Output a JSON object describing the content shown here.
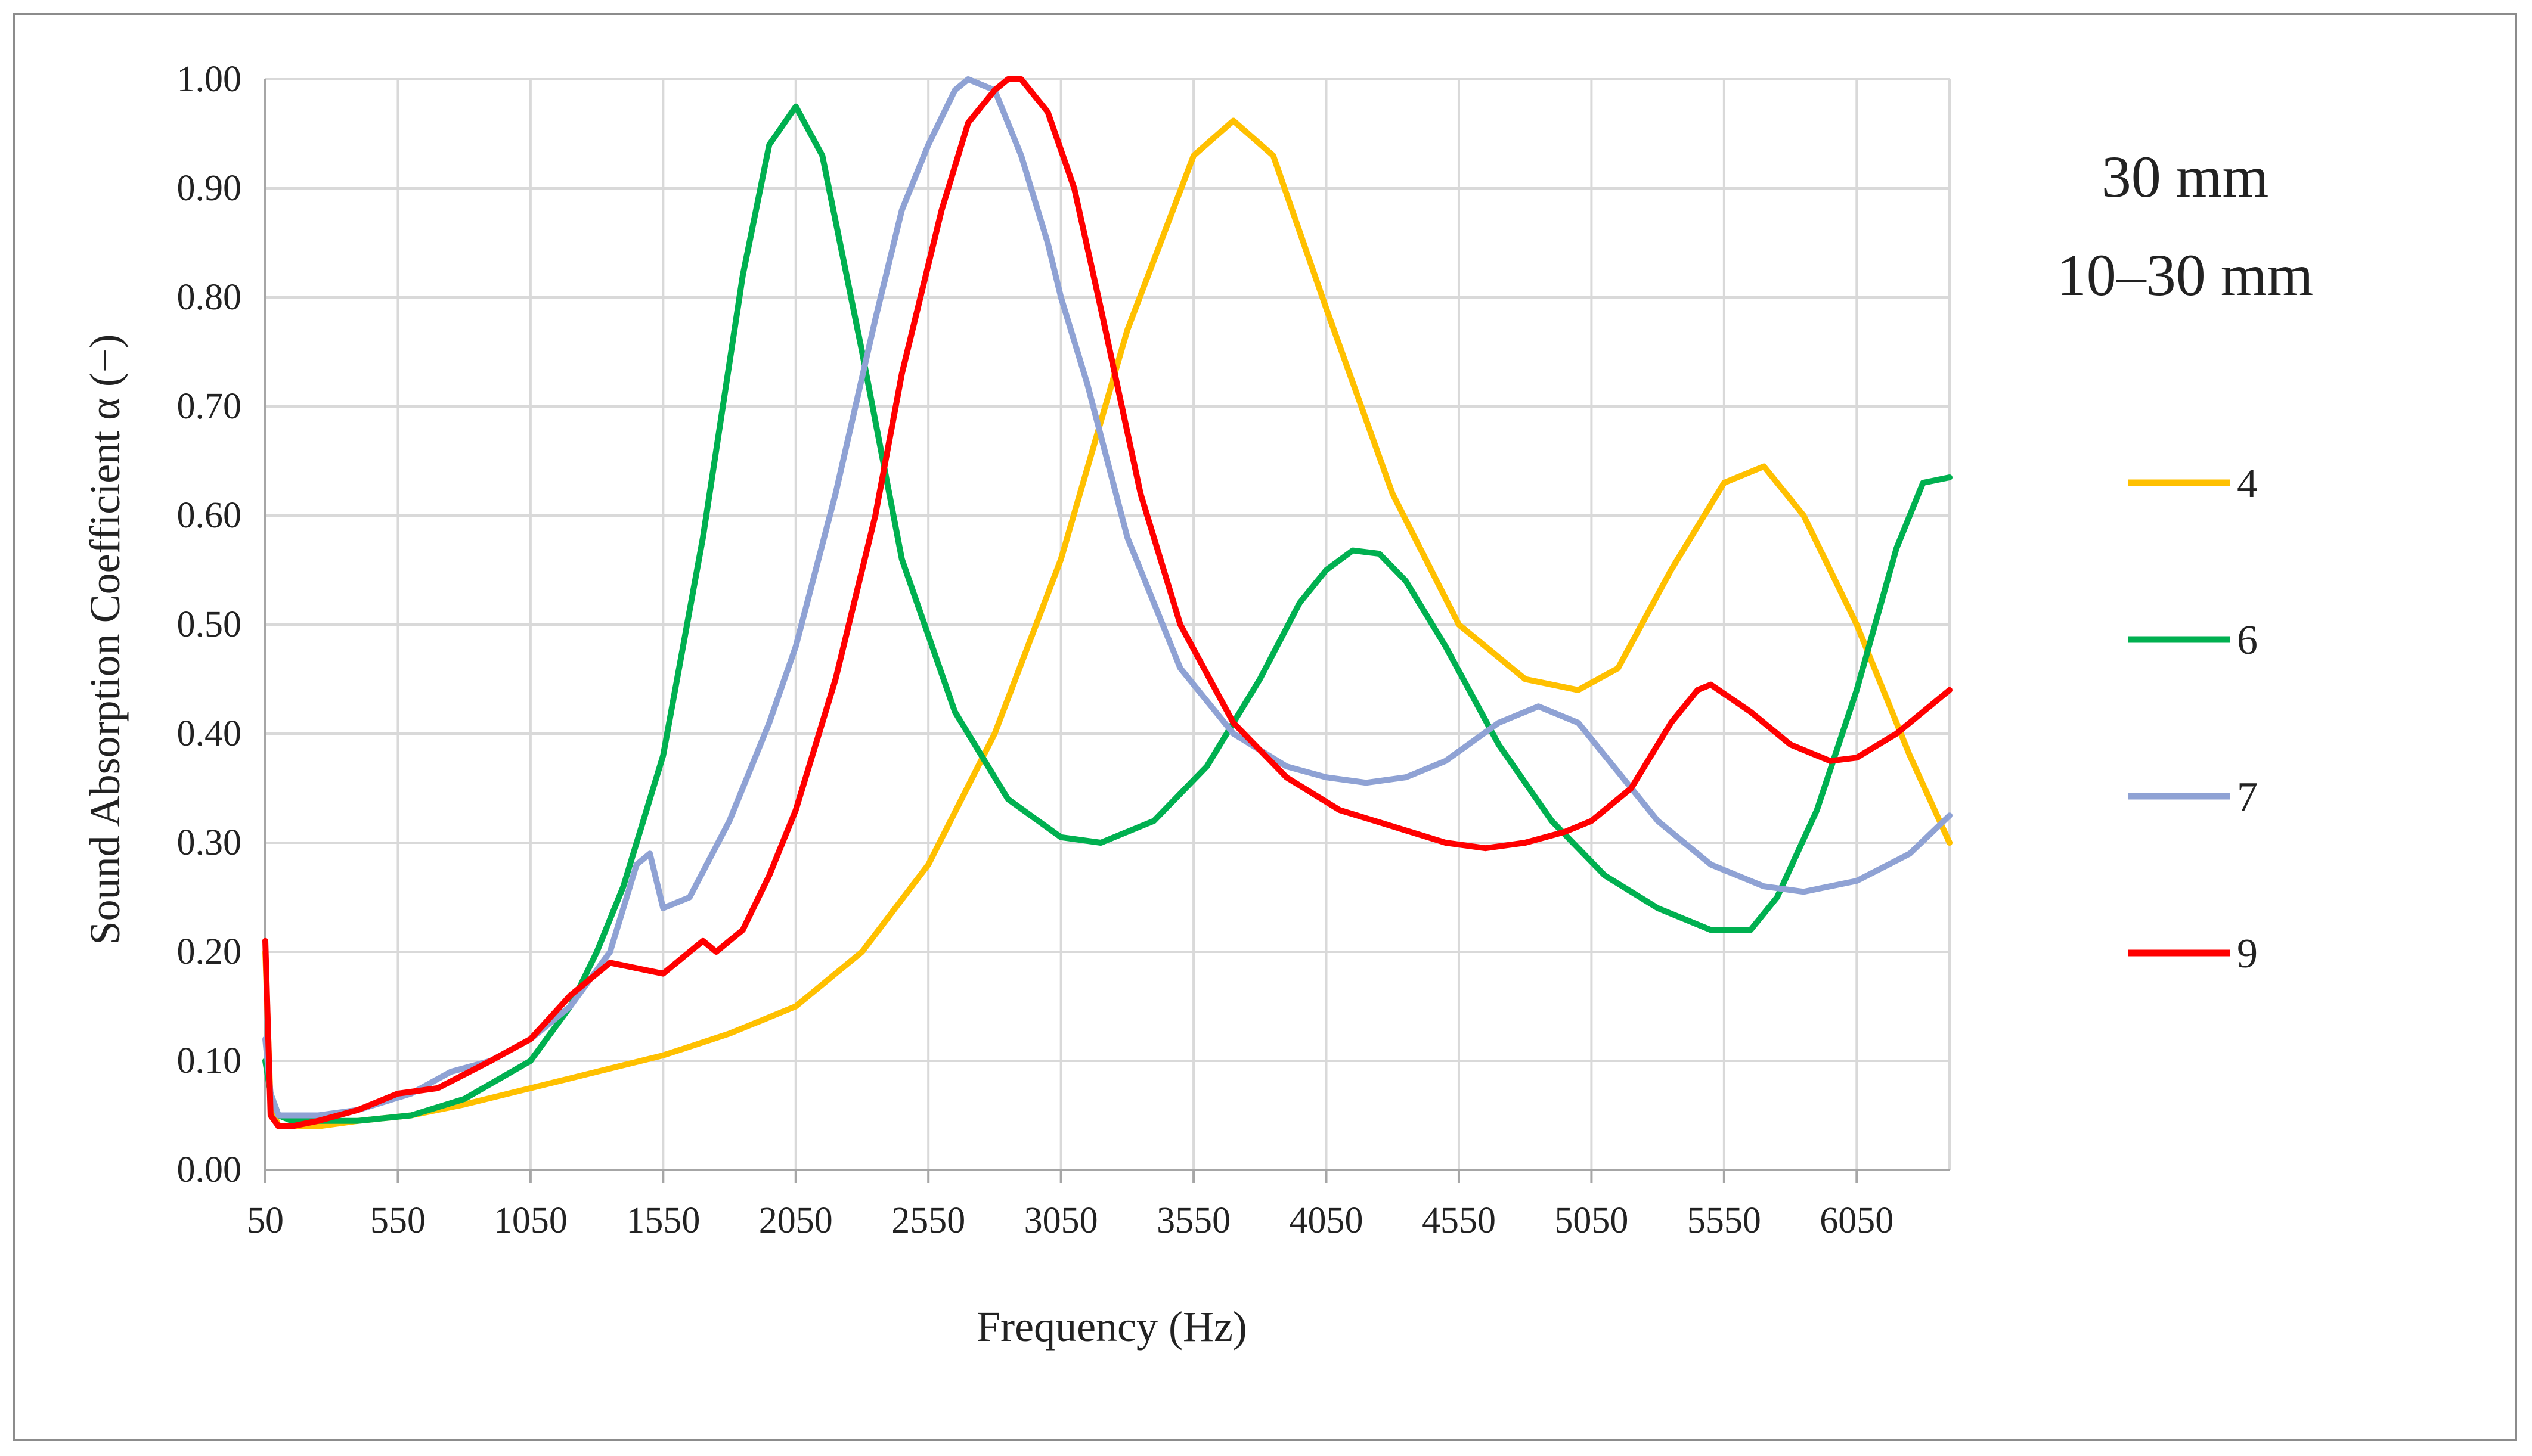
{
  "chart_data": {
    "type": "line",
    "title": "",
    "xlabel": "Frequency (Hz)",
    "ylabel": "Sound Absorption Coefficient α (−)",
    "xlim": [
      50,
      6400
    ],
    "ylim": [
      0,
      1.0
    ],
    "grid": true,
    "legend_position": "right",
    "x_ticks": [
      "50",
      "550",
      "1050",
      "1550",
      "2050",
      "2550",
      "3050",
      "3550",
      "4050",
      "4550",
      "5050",
      "5550",
      "6050"
    ],
    "y_ticks": [
      "0.00",
      "0.10",
      "0.20",
      "0.30",
      "0.40",
      "0.50",
      "0.60",
      "0.70",
      "0.80",
      "0.90",
      "1.00"
    ],
    "annotations": [
      "30 mm",
      "10–30 mm"
    ],
    "series": [
      {
        "name": "4",
        "color": "#ffc000",
        "x": [
          50,
          70,
          100,
          150,
          250,
          400,
          600,
          800,
          1050,
          1300,
          1550,
          1800,
          2050,
          2300,
          2550,
          2800,
          3050,
          3300,
          3550,
          3700,
          3850,
          4050,
          4300,
          4550,
          4800,
          5000,
          5150,
          5350,
          5550,
          5700,
          5850,
          6050,
          6250,
          6400
        ],
        "y": [
          0.2,
          0.06,
          0.04,
          0.04,
          0.04,
          0.045,
          0.05,
          0.06,
          0.075,
          0.09,
          0.105,
          0.125,
          0.15,
          0.2,
          0.28,
          0.4,
          0.56,
          0.77,
          0.93,
          0.962,
          0.93,
          0.79,
          0.62,
          0.5,
          0.45,
          0.44,
          0.46,
          0.55,
          0.63,
          0.645,
          0.6,
          0.5,
          0.38,
          0.3
        ]
      },
      {
        "name": "6",
        "color": "#00b050",
        "x": [
          50,
          70,
          100,
          150,
          250,
          400,
          600,
          800,
          1050,
          1200,
          1300,
          1400,
          1550,
          1700,
          1850,
          1950,
          2050,
          2150,
          2300,
          2450,
          2650,
          2850,
          3050,
          3200,
          3400,
          3600,
          3800,
          3950,
          4050,
          4150,
          4250,
          4350,
          4500,
          4700,
          4900,
          5100,
          5300,
          5500,
          5650,
          5750,
          5900,
          6050,
          6200,
          6300,
          6400
        ],
        "y": [
          0.1,
          0.07,
          0.05,
          0.045,
          0.045,
          0.045,
          0.05,
          0.065,
          0.1,
          0.15,
          0.2,
          0.26,
          0.38,
          0.58,
          0.82,
          0.94,
          0.975,
          0.93,
          0.75,
          0.56,
          0.42,
          0.34,
          0.305,
          0.3,
          0.32,
          0.37,
          0.45,
          0.52,
          0.55,
          0.568,
          0.565,
          0.54,
          0.48,
          0.39,
          0.32,
          0.27,
          0.24,
          0.22,
          0.22,
          0.25,
          0.33,
          0.44,
          0.57,
          0.63,
          0.635
        ]
      },
      {
        "name": "7",
        "color": "#8fa2d4",
        "x": [
          50,
          70,
          100,
          150,
          250,
          400,
          600,
          750,
          900,
          1050,
          1200,
          1350,
          1450,
          1500,
          1550,
          1650,
          1800,
          1950,
          2050,
          2200,
          2350,
          2450,
          2550,
          2650,
          2700,
          2800,
          2900,
          3000,
          3050,
          3150,
          3300,
          3500,
          3700,
          3900,
          4050,
          4200,
          4350,
          4500,
          4700,
          4850,
          5000,
          5100,
          5300,
          5500,
          5700,
          5850,
          6050,
          6250,
          6400
        ],
        "y": [
          0.12,
          0.07,
          0.05,
          0.05,
          0.05,
          0.055,
          0.07,
          0.09,
          0.1,
          0.12,
          0.15,
          0.2,
          0.28,
          0.29,
          0.24,
          0.25,
          0.32,
          0.41,
          0.48,
          0.62,
          0.78,
          0.88,
          0.94,
          0.99,
          1.0,
          0.99,
          0.93,
          0.85,
          0.8,
          0.72,
          0.58,
          0.46,
          0.4,
          0.37,
          0.36,
          0.355,
          0.36,
          0.375,
          0.41,
          0.425,
          0.41,
          0.38,
          0.32,
          0.28,
          0.26,
          0.255,
          0.265,
          0.29,
          0.325
        ]
      },
      {
        "name": "9",
        "color": "#ff0000",
        "x": [
          50,
          70,
          100,
          150,
          250,
          400,
          550,
          700,
          900,
          1050,
          1200,
          1350,
          1450,
          1550,
          1650,
          1700,
          1750,
          1850,
          1950,
          2050,
          2200,
          2350,
          2450,
          2600,
          2700,
          2800,
          2850,
          2900,
          3000,
          3100,
          3200,
          3350,
          3500,
          3700,
          3900,
          4100,
          4300,
          4500,
          4650,
          4800,
          4950,
          5050,
          5200,
          5350,
          5450,
          5500,
          5650,
          5800,
          5950,
          6050,
          6200,
          6300,
          6400
        ],
        "y": [
          0.21,
          0.05,
          0.04,
          0.04,
          0.045,
          0.055,
          0.07,
          0.075,
          0.1,
          0.12,
          0.16,
          0.19,
          0.185,
          0.18,
          0.2,
          0.21,
          0.2,
          0.22,
          0.27,
          0.33,
          0.45,
          0.6,
          0.73,
          0.88,
          0.96,
          0.99,
          1.0,
          1.0,
          0.97,
          0.9,
          0.79,
          0.62,
          0.5,
          0.41,
          0.36,
          0.33,
          0.315,
          0.3,
          0.295,
          0.3,
          0.31,
          0.32,
          0.35,
          0.41,
          0.44,
          0.445,
          0.42,
          0.39,
          0.375,
          0.378,
          0.4,
          0.42,
          0.44
        ]
      }
    ]
  }
}
